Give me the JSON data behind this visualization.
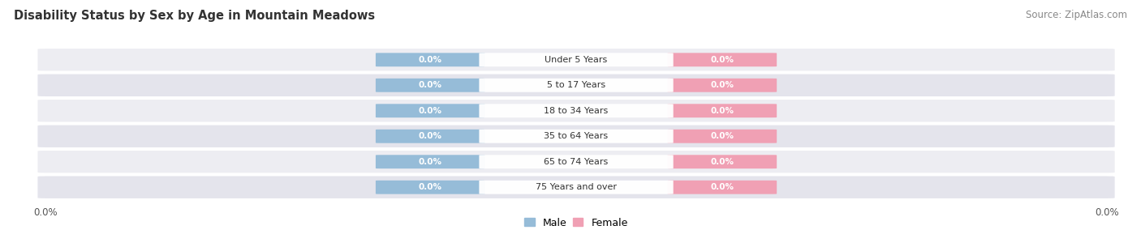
{
  "title": "Disability Status by Sex by Age in Mountain Meadows",
  "source": "Source: ZipAtlas.com",
  "categories": [
    "Under 5 Years",
    "5 to 17 Years",
    "18 to 34 Years",
    "35 to 64 Years",
    "65 to 74 Years",
    "75 Years and over"
  ],
  "male_values": [
    0.0,
    0.0,
    0.0,
    0.0,
    0.0,
    0.0
  ],
  "female_values": [
    0.0,
    0.0,
    0.0,
    0.0,
    0.0,
    0.0
  ],
  "male_color": "#96bcd8",
  "female_color": "#f0a0b4",
  "row_colors": [
    "#ededf2",
    "#e4e4ec"
  ],
  "title_fontsize": 10.5,
  "source_fontsize": 8.5,
  "tick_label_left": "0.0%",
  "tick_label_right": "0.0%"
}
